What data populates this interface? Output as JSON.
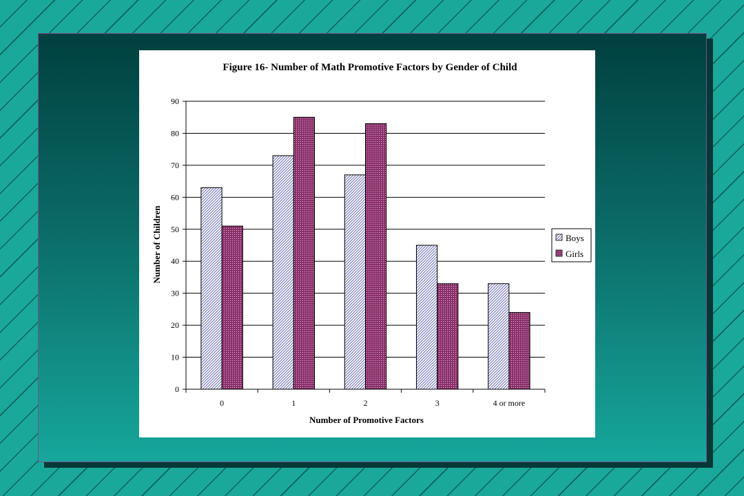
{
  "chart_data": {
    "type": "bar",
    "title": "Figure 16- Number of Math Promotive Factors by Gender of Child",
    "xlabel": "Number of Promotive Factors",
    "ylabel": "Number of Children",
    "categories": [
      "0",
      "1",
      "2",
      "3",
      "4 or more"
    ],
    "series": [
      {
        "name": "Boys",
        "values": [
          63,
          73,
          67,
          45,
          33
        ]
      },
      {
        "name": "Girls",
        "values": [
          51,
          85,
          83,
          33,
          24
        ]
      }
    ],
    "ylim": [
      0,
      90
    ],
    "yticks": [
      0,
      10,
      20,
      30,
      40,
      50,
      60,
      70,
      80,
      90
    ],
    "grid": true,
    "legend_position": "right",
    "colors": {
      "Boys": "#c8c8ec",
      "Girls": "#8a2f6a"
    }
  }
}
